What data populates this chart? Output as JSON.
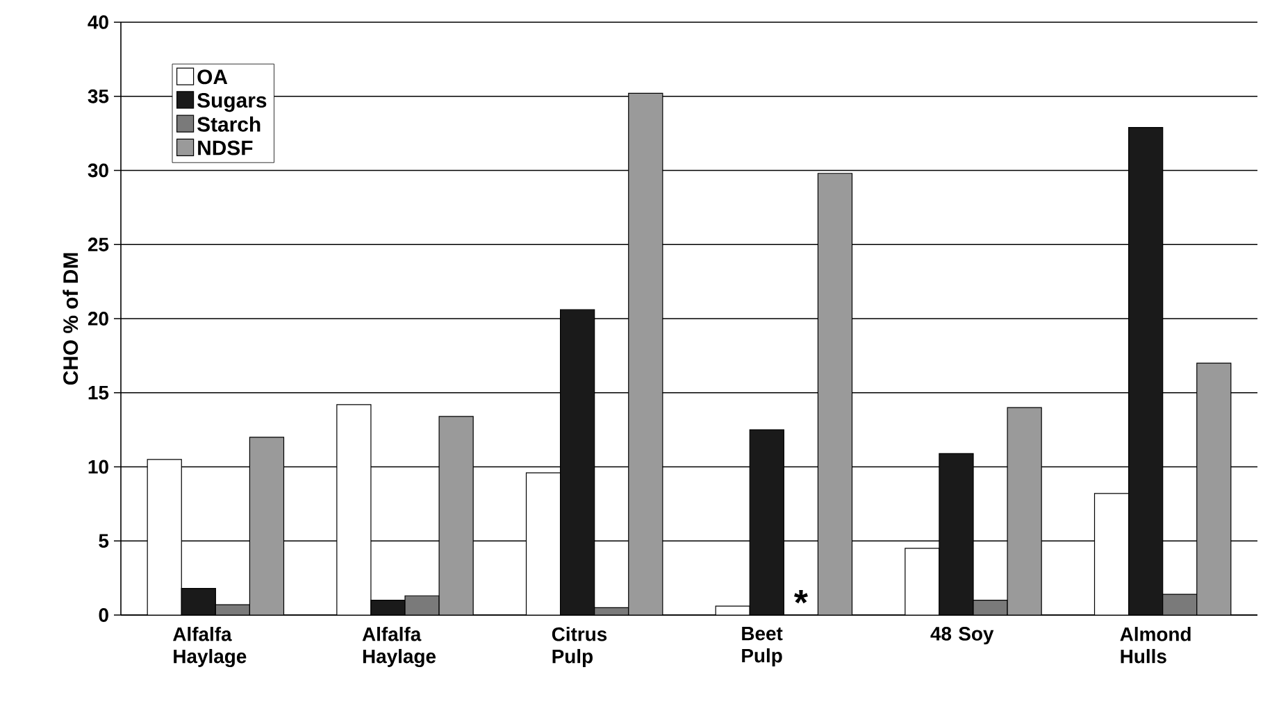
{
  "chart_data": {
    "type": "bar",
    "ylabel": "CHO % of DM",
    "categories": [
      "Alfalfa Haylage",
      "Alfalfa Haylage",
      "Citrus Pulp",
      "Beet Pulp",
      "48 Soy",
      "Almond Hulls"
    ],
    "series": [
      {
        "name": "OA",
        "color": "#ffffff",
        "values": [
          10.5,
          14.2,
          9.6,
          0.6,
          4.5,
          8.2
        ]
      },
      {
        "name": "Sugars",
        "color": "#1a1a1a",
        "values": [
          1.8,
          1.0,
          20.6,
          12.5,
          10.9,
          32.9
        ]
      },
      {
        "name": "Starch",
        "color": "#7a7a7a",
        "values": [
          0.7,
          1.3,
          0.5,
          null,
          1.0,
          1.4
        ]
      },
      {
        "name": "NDSF",
        "color": "#9a9a9a",
        "values": [
          12.0,
          13.4,
          35.2,
          29.8,
          14.0,
          17.0
        ]
      }
    ],
    "annotations": [
      {
        "text": "*",
        "x": "Beet Pulp",
        "y": 0
      }
    ],
    "ylim": [
      0,
      40
    ],
    "yticks": [
      0,
      5,
      10,
      15,
      20,
      25,
      30,
      35,
      40
    ],
    "grid": "y",
    "legend": "top left"
  }
}
